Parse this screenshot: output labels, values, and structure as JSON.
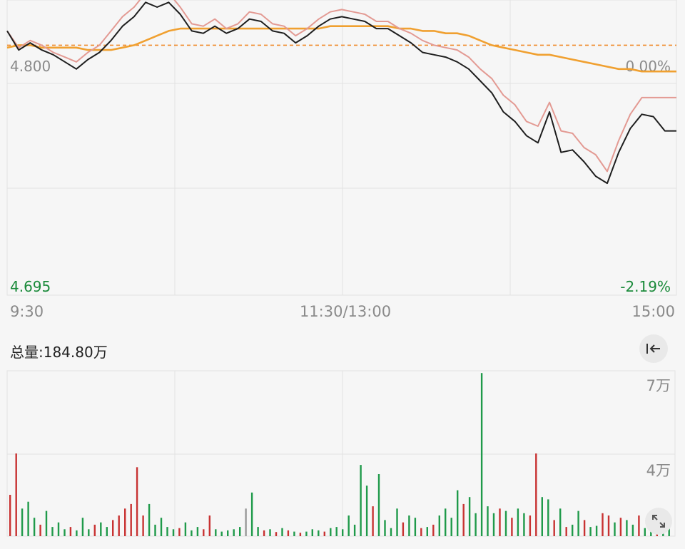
{
  "summary": {
    "total_volume_label": "总量:184.80万"
  },
  "icons": {
    "collapse": "collapse-left-icon",
    "expand": "expand-diagonal-icon"
  },
  "colors": {
    "price_line": "#1e1e1e",
    "upper_line": "#e39a93",
    "avg_line": "#f0a030",
    "ref_line": "#ef8a2a",
    "up_bar": "#c83232",
    "down_bar": "#1f9a4a",
    "flat_bar": "#999999",
    "low_text": "#1a8a3a",
    "grid": "#e2e2e2",
    "axis_text": "#8a8a8a"
  },
  "chart_data": [
    {
      "type": "line",
      "title": "",
      "x_ticks": [
        "9:30",
        "11:30/13:00",
        "15:00"
      ],
      "y_left_ticks": [
        "4.800",
        "4.695"
      ],
      "y_right_ticks": [
        "0.00%",
        "-2.19%"
      ],
      "ylim": [
        4.695,
        4.819
      ],
      "reference_price": 4.8,
      "grid": true,
      "series": [
        {
          "role": "price",
          "values": [
            4.806,
            4.798,
            4.801,
            4.798,
            4.796,
            4.793,
            4.79,
            4.794,
            4.797,
            4.802,
            4.808,
            4.812,
            4.818,
            4.816,
            4.818,
            4.813,
            4.806,
            4.805,
            4.808,
            4.805,
            4.807,
            4.811,
            4.81,
            4.806,
            4.805,
            4.801,
            4.804,
            4.808,
            4.811,
            4.812,
            4.811,
            4.81,
            4.807,
            4.807,
            4.804,
            4.801,
            4.797,
            4.796,
            4.795,
            4.793,
            4.79,
            4.785,
            4.78,
            4.772,
            4.768,
            4.762,
            4.759,
            4.772,
            4.755,
            4.756,
            4.751,
            4.745,
            4.742,
            4.755,
            4.765,
            4.771,
            4.77,
            4.764,
            4.764
          ]
        },
        {
          "role": "upper",
          "values": [
            4.806,
            4.799,
            4.802,
            4.8,
            4.797,
            4.795,
            4.793,
            4.797,
            4.8,
            4.806,
            4.812,
            4.816,
            4.822,
            4.82,
            4.822,
            4.816,
            4.809,
            4.808,
            4.811,
            4.807,
            4.809,
            4.814,
            4.813,
            4.809,
            4.808,
            4.804,
            4.807,
            4.811,
            4.814,
            4.815,
            4.814,
            4.813,
            4.81,
            4.81,
            4.807,
            4.805,
            4.802,
            4.8,
            4.799,
            4.798,
            4.795,
            4.79,
            4.786,
            4.779,
            4.775,
            4.768,
            4.766,
            4.776,
            4.764,
            4.763,
            4.757,
            4.754,
            4.747,
            4.76,
            4.771,
            4.778,
            4.778,
            4.778,
            4.778
          ]
        },
        {
          "role": "average",
          "values": [
            4.799,
            4.8,
            4.8,
            4.799,
            4.799,
            4.799,
            4.799,
            4.798,
            4.798,
            4.798,
            4.799,
            4.8,
            4.802,
            4.804,
            4.806,
            4.807,
            4.807,
            4.807,
            4.807,
            4.807,
            4.807,
            4.807,
            4.807,
            4.807,
            4.807,
            4.807,
            4.807,
            4.807,
            4.808,
            4.808,
            4.808,
            4.808,
            4.808,
            4.808,
            4.807,
            4.807,
            4.806,
            4.806,
            4.805,
            4.805,
            4.804,
            4.802,
            4.8,
            4.799,
            4.798,
            4.797,
            4.796,
            4.796,
            4.795,
            4.794,
            4.793,
            4.792,
            4.791,
            4.79,
            4.79,
            4.789,
            4.789,
            4.789,
            4.789
          ]
        }
      ]
    },
    {
      "type": "bar",
      "title": "",
      "y_ticks": [
        "7万",
        "4万"
      ],
      "ylim": [
        0,
        72000
      ],
      "grid": true,
      "values": [
        18000,
        36000,
        12000,
        15000,
        8000,
        5000,
        11000,
        4000,
        6000,
        3000,
        4000,
        2500,
        8000,
        3000,
        5000,
        6000,
        4000,
        7000,
        9000,
        12000,
        14000,
        30000,
        9000,
        14000,
        5000,
        8000,
        4000,
        3000,
        3500,
        6000,
        2500,
        4000,
        3000,
        9000,
        3000,
        2000,
        2500,
        3000,
        4000,
        12000,
        19000,
        4000,
        2500,
        3000,
        1800,
        3500,
        2500,
        2000,
        1500,
        2000,
        3000,
        2500,
        2000,
        3500,
        4000,
        3000,
        9000,
        5000,
        31000,
        22000,
        13000,
        27000,
        7000,
        3500,
        12000,
        6000,
        9000,
        8000,
        3500,
        4000,
        5000,
        9000,
        12000,
        8000,
        20000,
        14000,
        17000,
        10000,
        71000,
        13000,
        10000,
        12000,
        11000,
        8000,
        12000,
        10000,
        9000,
        36000,
        17000,
        16000,
        7000,
        12000,
        4000,
        5000,
        11000,
        7000,
        4000,
        4500,
        10000,
        9000,
        6000,
        8000,
        7000,
        5000,
        9000,
        3500,
        5000,
        4000,
        7000,
        6000
      ],
      "directions": [
        "u",
        "u",
        "d",
        "d",
        "d",
        "u",
        "d",
        "d",
        "d",
        "d",
        "u",
        "d",
        "d",
        "d",
        "u",
        "d",
        "d",
        "u",
        "u",
        "u",
        "u",
        "u",
        "u",
        "d",
        "d",
        "d",
        "d",
        "d",
        "u",
        "d",
        "d",
        "d",
        "u",
        "u",
        "d",
        "d",
        "d",
        "d",
        "d",
        "f",
        "d",
        "d",
        "u",
        "d",
        "u",
        "d",
        "u",
        "d",
        "u",
        "d",
        "d",
        "d",
        "u",
        "d",
        "d",
        "d",
        "d",
        "d",
        "d",
        "d",
        "u",
        "d",
        "d",
        "d",
        "d",
        "u",
        "d",
        "d",
        "u",
        "d",
        "u",
        "d",
        "d",
        "d",
        "d",
        "u",
        "d",
        "d",
        "d",
        "d",
        "d",
        "u",
        "d",
        "u",
        "d",
        "d",
        "u",
        "u",
        "d",
        "d",
        "u",
        "d",
        "u",
        "d",
        "d",
        "u",
        "d",
        "d",
        "u",
        "u",
        "d",
        "u",
        "d",
        "d",
        "u",
        "d",
        "d",
        "u",
        "d",
        "d"
      ]
    }
  ]
}
